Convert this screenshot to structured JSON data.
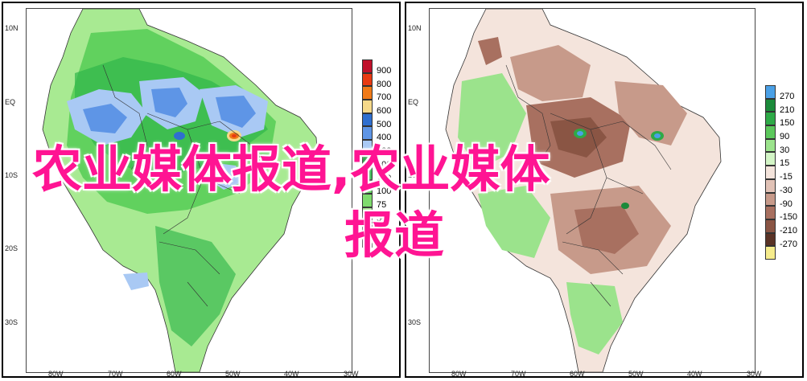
{
  "overlay": {
    "line1": "农业媒体报道,农业媒体",
    "line2": "报道"
  },
  "latitude_labels": [
    "10N",
    "EQ",
    "10S",
    "20S",
    "30S"
  ],
  "longitude_labels": [
    "80W",
    "70W",
    "60W",
    "50W",
    "40W",
    "30W"
  ],
  "left_map": {
    "legend": [
      {
        "label": "900",
        "color": "#c0102a"
      },
      {
        "label": "800",
        "color": "#e83a12"
      },
      {
        "label": "700",
        "color": "#f07a18"
      },
      {
        "label": "600",
        "color": "#f6d98a"
      },
      {
        "label": "500",
        "color": "#2f6fd0"
      },
      {
        "label": "400",
        "color": "#5e95e6"
      },
      {
        "label": "300",
        "color": "#a9c9f4"
      },
      {
        "label": "200",
        "color": "#1f9a3a"
      },
      {
        "label": "150",
        "color": "#2fb64a"
      },
      {
        "label": "100",
        "color": "#55cc55"
      },
      {
        "label": "75",
        "color": "#7fdb6e"
      },
      {
        "label": "50",
        "color": "#a8ea92"
      },
      {
        "label": "25",
        "color": "#d0f5c2"
      },
      {
        "label": "10",
        "color": "#ffffff"
      }
    ]
  },
  "right_map": {
    "legend": [
      {
        "label": "270",
        "color": "#4aa0e6"
      },
      {
        "label": "210",
        "color": "#1b8a3a"
      },
      {
        "label": "150",
        "color": "#2eaa47"
      },
      {
        "label": "90",
        "color": "#5cc85c"
      },
      {
        "label": "30",
        "color": "#9be38c"
      },
      {
        "label": "15",
        "color": "#d3f5c6"
      },
      {
        "label": "-15",
        "color": "#f4e4dc"
      },
      {
        "label": "-30",
        "color": "#e1c2b6"
      },
      {
        "label": "-90",
        "color": "#c79a8a"
      },
      {
        "label": "-150",
        "color": "#a87060"
      },
      {
        "label": "-210",
        "color": "#8a5544"
      },
      {
        "label": "-270",
        "color": "#5a3326"
      },
      {
        "label": "",
        "color": "#f6ec8c"
      }
    ]
  }
}
